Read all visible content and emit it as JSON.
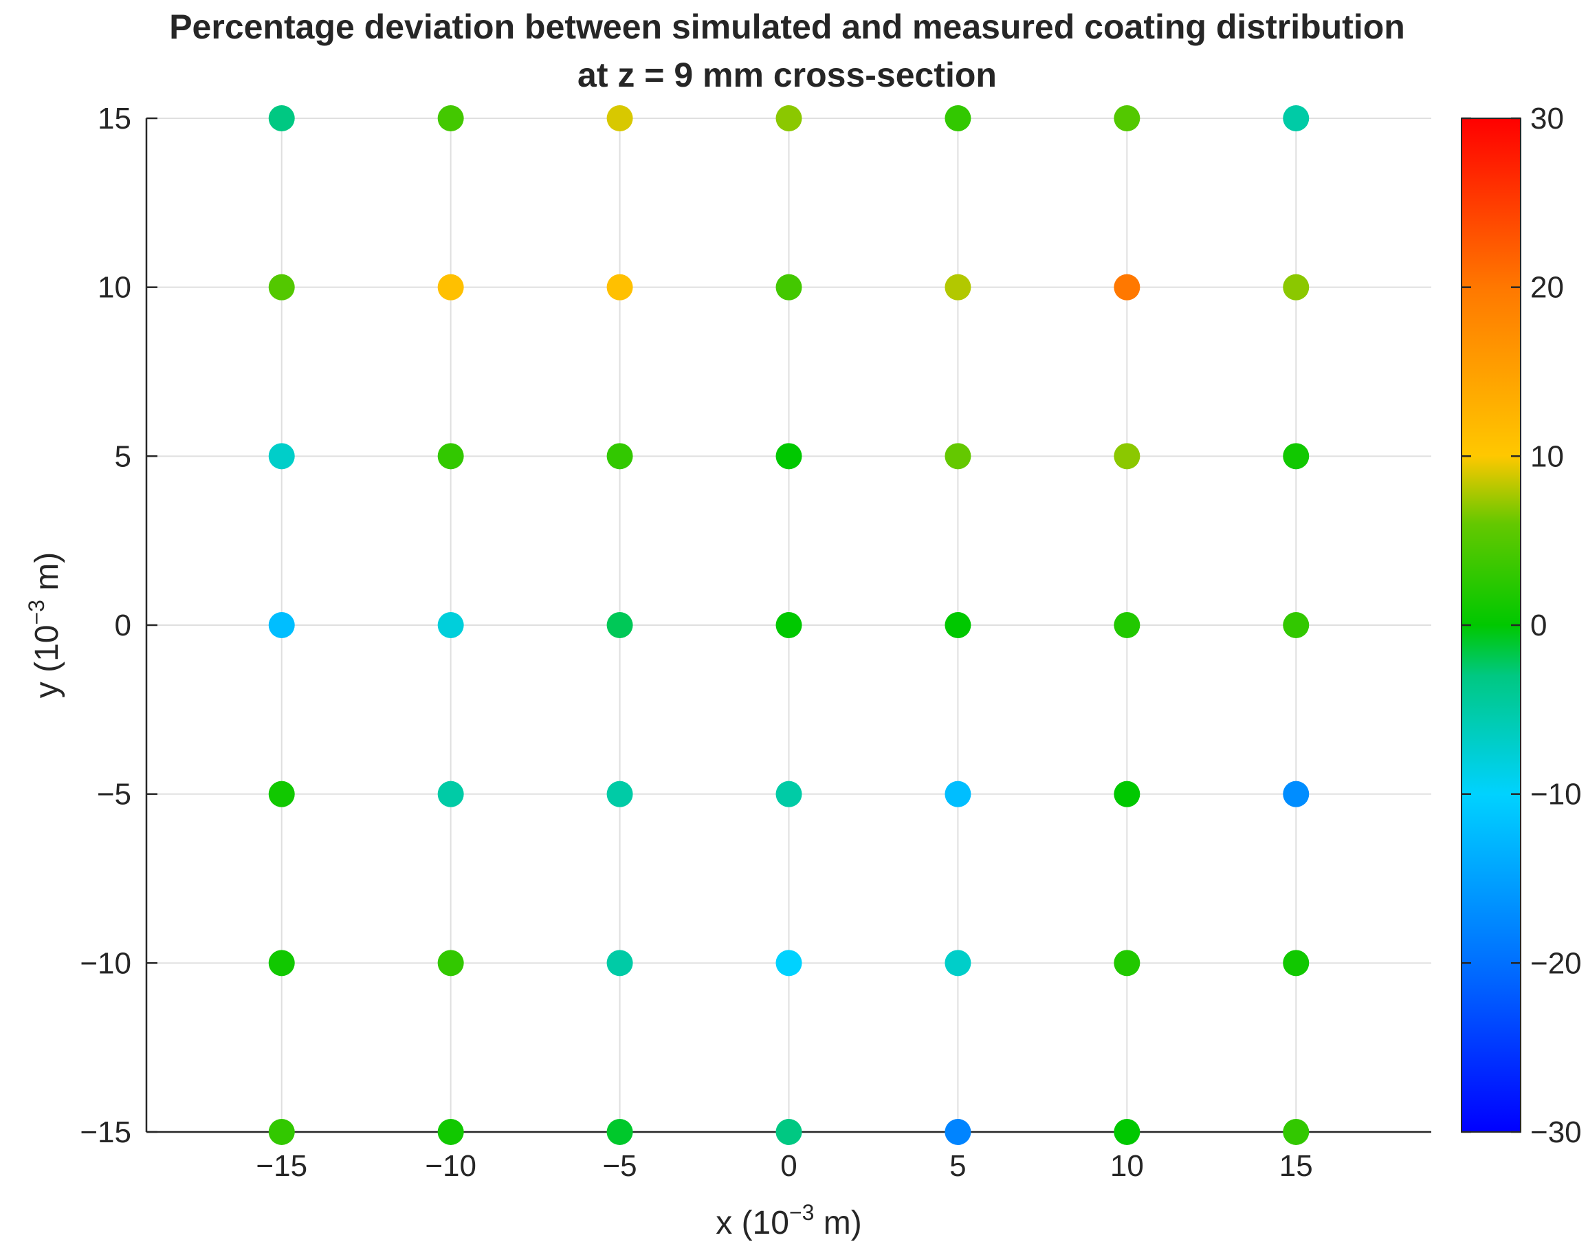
{
  "chart_data": {
    "type": "scatter",
    "title": "Percentage deviation between simulated and measured coating distribution",
    "subtitle": "at z = 9 mm cross-section",
    "xlabel": "x (10^-3 m)",
    "ylabel": "y (10^-3 m)",
    "xlabel_parts": {
      "base": "x (10",
      "exp": "−3",
      "unit": " m)"
    },
    "ylabel_parts": {
      "base": "y (10",
      "exp": "−3",
      "unit": " m)"
    },
    "xlim": [
      -19,
      19
    ],
    "ylim": [
      -15,
      15
    ],
    "xticks": [
      -15,
      -10,
      -5,
      0,
      5,
      10,
      15
    ],
    "xtick_labels": [
      "−15",
      "−10",
      "−5",
      "0",
      "5",
      "10",
      "15"
    ],
    "yticks": [
      -15,
      -10,
      -5,
      0,
      5,
      10,
      15
    ],
    "ytick_labels": [
      "−15",
      "−10",
      "−5",
      "0",
      "5",
      "10",
      "15"
    ],
    "grid": true,
    "colorbar": {
      "colormap": "jet-like",
      "clim": [
        -30,
        30
      ],
      "ticks": [
        -30,
        -20,
        -10,
        0,
        10,
        20,
        30
      ],
      "tick_labels": [
        "−30",
        "−20",
        "−10",
        "0",
        "10",
        "20",
        "30"
      ],
      "position": "right"
    },
    "points": [
      {
        "x": -15,
        "y": 15,
        "value": -3
      },
      {
        "x": -10,
        "y": 15,
        "value": 4
      },
      {
        "x": -5,
        "y": 15,
        "value": 9
      },
      {
        "x": 0,
        "y": 15,
        "value": 7
      },
      {
        "x": 5,
        "y": 15,
        "value": 3
      },
      {
        "x": 10,
        "y": 15,
        "value": 5
      },
      {
        "x": 15,
        "y": 15,
        "value": -5
      },
      {
        "x": -15,
        "y": 10,
        "value": 5
      },
      {
        "x": -10,
        "y": 10,
        "value": 11
      },
      {
        "x": -5,
        "y": 10,
        "value": 11
      },
      {
        "x": 0,
        "y": 10,
        "value": 4
      },
      {
        "x": 5,
        "y": 10,
        "value": 8
      },
      {
        "x": 10,
        "y": 10,
        "value": 20
      },
      {
        "x": 15,
        "y": 10,
        "value": 7
      },
      {
        "x": -15,
        "y": 5,
        "value": -7
      },
      {
        "x": -10,
        "y": 5,
        "value": 3
      },
      {
        "x": -5,
        "y": 5,
        "value": 3
      },
      {
        "x": 0,
        "y": 5,
        "value": 0
      },
      {
        "x": 5,
        "y": 5,
        "value": 6
      },
      {
        "x": 10,
        "y": 5,
        "value": 7
      },
      {
        "x": 15,
        "y": 5,
        "value": 1
      },
      {
        "x": -15,
        "y": 0,
        "value": -12
      },
      {
        "x": -10,
        "y": 0,
        "value": -8
      },
      {
        "x": -5,
        "y": 0,
        "value": -2
      },
      {
        "x": 0,
        "y": 0,
        "value": 0
      },
      {
        "x": 5,
        "y": 0,
        "value": 0
      },
      {
        "x": 10,
        "y": 0,
        "value": 2
      },
      {
        "x": 15,
        "y": 0,
        "value": 3
      },
      {
        "x": -15,
        "y": -5,
        "value": 1
      },
      {
        "x": -10,
        "y": -5,
        "value": -5
      },
      {
        "x": -5,
        "y": -5,
        "value": -5
      },
      {
        "x": 0,
        "y": -5,
        "value": -5
      },
      {
        "x": 5,
        "y": -5,
        "value": -12
      },
      {
        "x": 10,
        "y": -5,
        "value": 0
      },
      {
        "x": 15,
        "y": -5,
        "value": -17
      },
      {
        "x": -15,
        "y": -10,
        "value": 1
      },
      {
        "x": -10,
        "y": -10,
        "value": 3
      },
      {
        "x": -5,
        "y": -10,
        "value": -5
      },
      {
        "x": 0,
        "y": -10,
        "value": -10
      },
      {
        "x": 5,
        "y": -10,
        "value": -7
      },
      {
        "x": 10,
        "y": -10,
        "value": 2
      },
      {
        "x": 15,
        "y": -10,
        "value": 1
      },
      {
        "x": -15,
        "y": -15,
        "value": 3
      },
      {
        "x": -10,
        "y": -15,
        "value": 1
      },
      {
        "x": -5,
        "y": -15,
        "value": -1
      },
      {
        "x": 0,
        "y": -15,
        "value": -3
      },
      {
        "x": 5,
        "y": -15,
        "value": -18
      },
      {
        "x": 10,
        "y": -15,
        "value": 0
      },
      {
        "x": 15,
        "y": -15,
        "value": 3
      }
    ]
  }
}
